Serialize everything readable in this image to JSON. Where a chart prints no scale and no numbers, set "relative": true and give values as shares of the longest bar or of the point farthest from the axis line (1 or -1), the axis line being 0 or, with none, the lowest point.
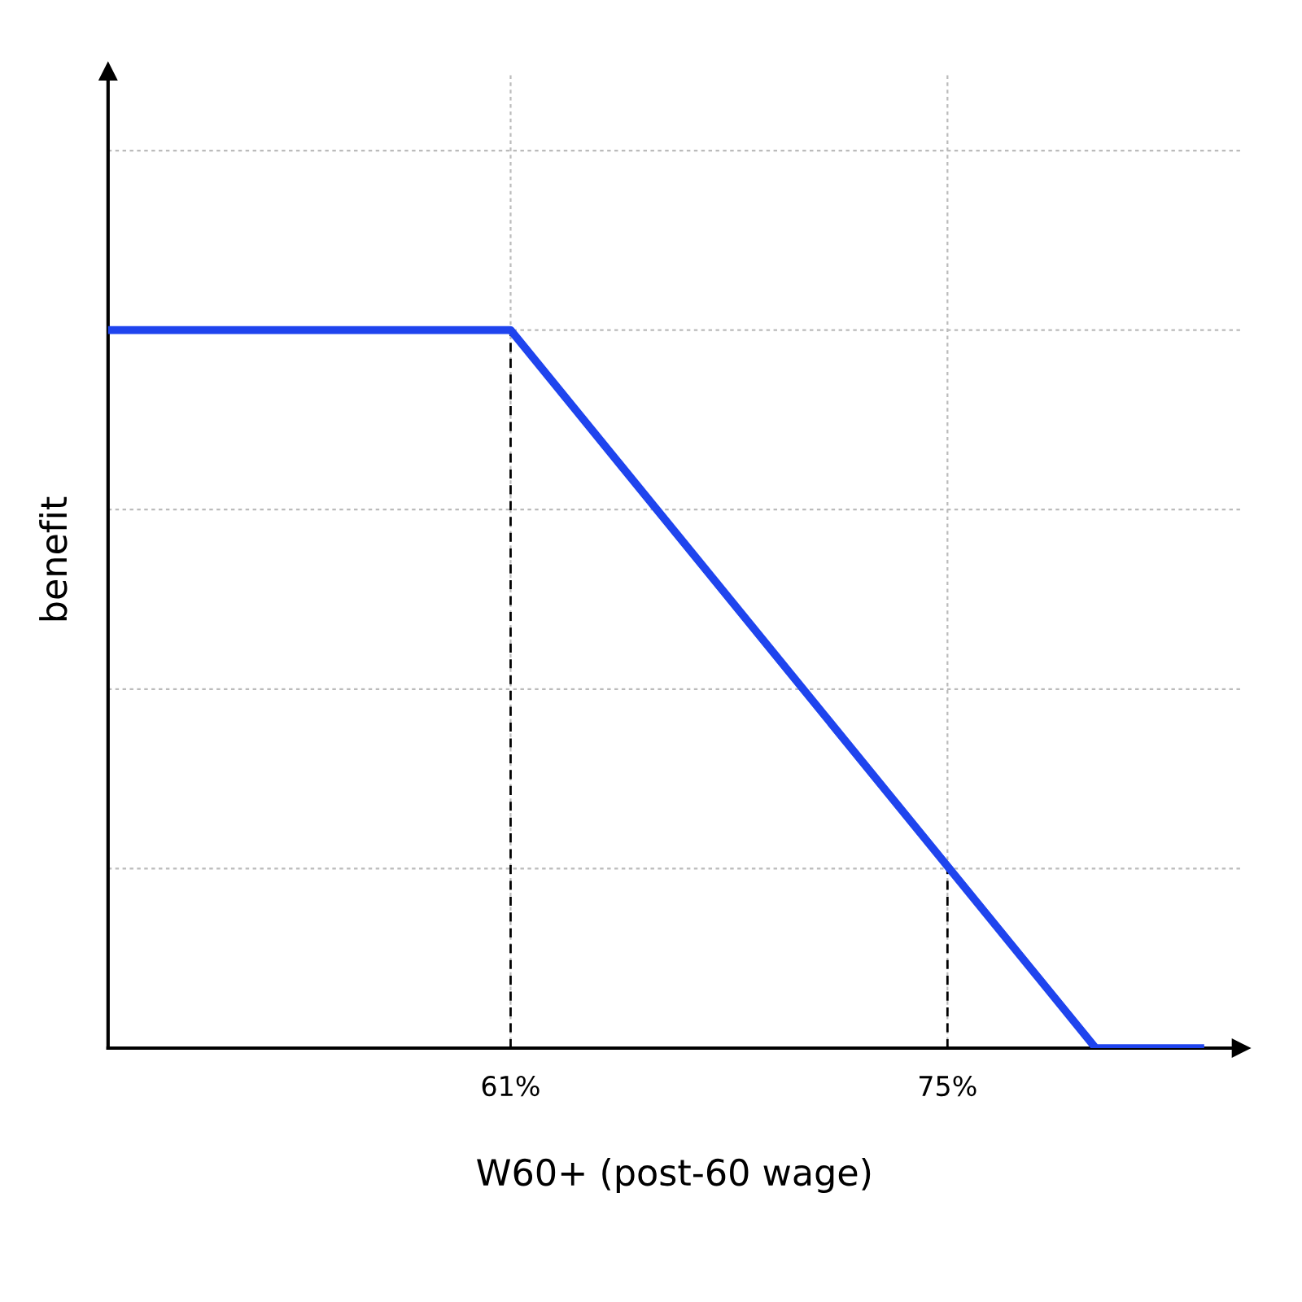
{
  "chart_data": {
    "type": "line",
    "xlabel": "W60+ (post-60 wage)",
    "ylabel": "benefit",
    "relative": true,
    "series": [
      {
        "color": "#1f44ee",
        "x": [
          48.1,
          61,
          79.75,
          83.1
        ],
        "values": [
          1,
          1,
          0,
          0
        ]
      }
    ],
    "xlim": [
      48.1,
      84.4
    ],
    "xticks": [
      {
        "value": 61,
        "label": "61%"
      },
      {
        "value": 75,
        "label": "75%"
      }
    ],
    "tick_labels": "x",
    "grid": true,
    "legend": false,
    "marker": "none",
    "line_style": "solid",
    "ref_lines": [
      {
        "axis": "x",
        "value": 61,
        "color": "#000000",
        "line_style": "dashed"
      },
      {
        "axis": "x",
        "value": 75,
        "color": "#000000",
        "line_style": "dashed"
      }
    ]
  }
}
